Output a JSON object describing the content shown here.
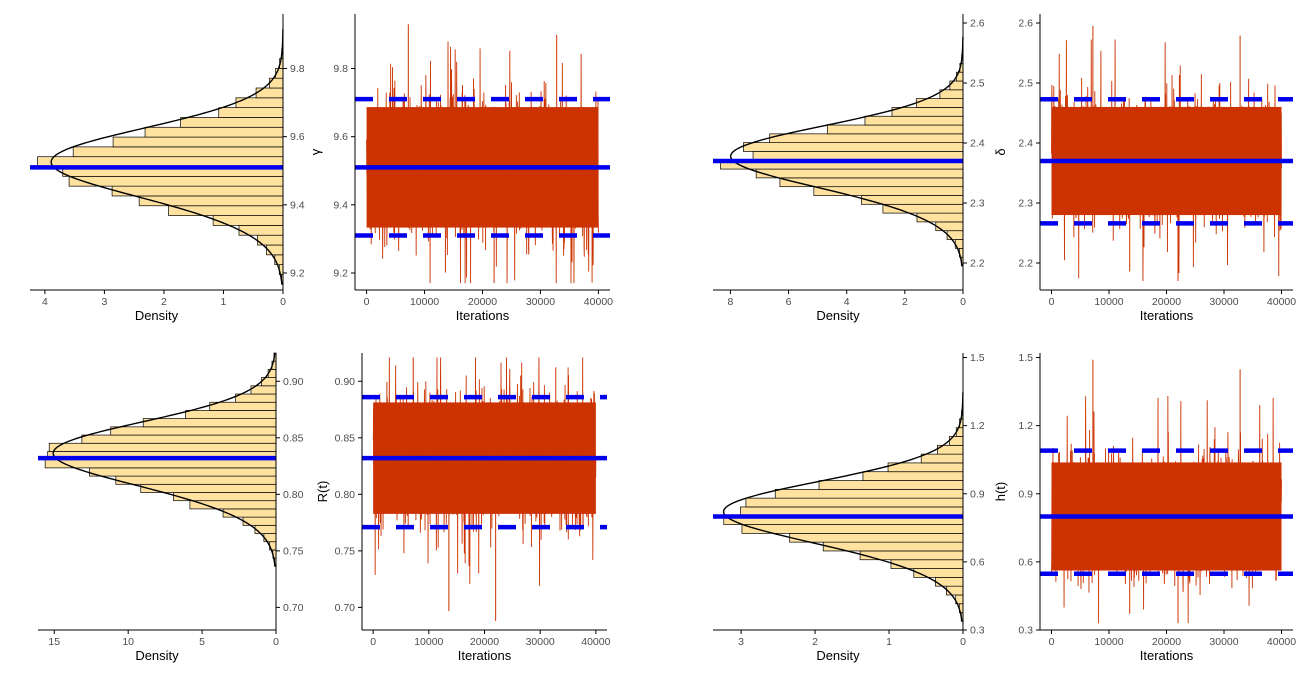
{
  "colors": {
    "trace": "#cc3300",
    "interval_line": "#0000ee",
    "hist_fill": "#ffe2a0",
    "hist_stroke": "#000000",
    "axis": "#000000"
  },
  "chart_data": [
    {
      "id": "gamma",
      "type": "posterior-panel",
      "parameter_label": "γ",
      "density_xlabel": "Density",
      "trace_xlabel": "Iterations",
      "ylim": [
        9.15,
        9.96
      ],
      "yticks": [
        9.2,
        9.4,
        9.6,
        9.8
      ],
      "ytick_labels": [
        "9.2",
        "9.4",
        "9.6",
        "9.8"
      ],
      "density_xlim": [
        4.25,
        0
      ],
      "density_xticks": [
        4,
        3,
        2,
        1,
        0
      ],
      "density_xtick_labels": [
        "4",
        "3",
        "2",
        "1",
        "0"
      ],
      "density_peak": 3.85,
      "iter_xlim": [
        -2000,
        42000
      ],
      "iter_xticks": [
        0,
        10000,
        20000,
        30000,
        40000
      ],
      "iter_xtick_labels": [
        "0",
        "10000",
        "20000",
        "30000",
        "40000"
      ],
      "iterations": 40000,
      "posterior_mean": 9.51,
      "posterior_sd": 0.104,
      "trace_min": 9.17,
      "trace_max": 9.93,
      "interval_lower": 9.31,
      "interval_upper": 9.71
    },
    {
      "id": "delta",
      "type": "posterior-panel",
      "parameter_label": "δ",
      "density_xlabel": "Density",
      "trace_xlabel": "Iterations",
      "ylim": [
        2.155,
        2.615
      ],
      "yticks": [
        2.2,
        2.3,
        2.4,
        2.5,
        2.6
      ],
      "ytick_labels": [
        "2.2",
        "2.3",
        "2.4",
        "2.5",
        "2.6"
      ],
      "density_xlim": [
        8.6,
        0
      ],
      "density_xticks": [
        8,
        6,
        4,
        2,
        0
      ],
      "density_xtick_labels": [
        "8",
        "6",
        "4",
        "2",
        "0"
      ],
      "density_peak": 7.9,
      "iter_xlim": [
        -2000,
        42000
      ],
      "iter_xticks": [
        0,
        10000,
        20000,
        30000,
        40000
      ],
      "iter_xtick_labels": [
        "0",
        "10000",
        "20000",
        "30000",
        "40000"
      ],
      "iterations": 40000,
      "posterior_mean": 2.37,
      "posterior_sd": 0.053,
      "trace_min": 2.17,
      "trace_max": 2.595,
      "interval_lower": 2.266,
      "interval_upper": 2.473
    },
    {
      "id": "reliability",
      "type": "posterior-panel",
      "parameter_label": "R(t)",
      "density_xlabel": "Density",
      "trace_xlabel": "Iterations",
      "ylim": [
        0.68,
        0.925
      ],
      "yticks": [
        0.7,
        0.75,
        0.8,
        0.85,
        0.9
      ],
      "ytick_labels": [
        "0.70",
        "0.75",
        "0.80",
        "0.85",
        "0.90"
      ],
      "density_xlim": [
        16.1,
        0
      ],
      "density_xticks": [
        15,
        10,
        5,
        0
      ],
      "density_xtick_labels": [
        "15",
        "10",
        "5",
        "0"
      ],
      "density_peak": 14.9,
      "iter_xlim": [
        -2000,
        42000
      ],
      "iter_xticks": [
        0,
        10000,
        20000,
        30000,
        40000
      ],
      "iter_xtick_labels": [
        "0",
        "10000",
        "20000",
        "30000",
        "40000"
      ],
      "iterations": 40000,
      "posterior_mean": 0.832,
      "posterior_sd": 0.029,
      "trace_min": 0.688,
      "trace_max": 0.921,
      "interval_lower": 0.771,
      "interval_upper": 0.886
    },
    {
      "id": "hazard",
      "type": "posterior-panel",
      "parameter_label": "h(t)",
      "density_xlabel": "Density",
      "trace_xlabel": "Iterations",
      "ylim": [
        0.3,
        1.52
      ],
      "yticks": [
        0.3,
        0.6,
        0.9,
        1.2,
        1.5
      ],
      "ytick_labels": [
        "0.3",
        "0.6",
        "0.9",
        "1.2",
        "1.5"
      ],
      "density_xlim": [
        3.38,
        0
      ],
      "density_xticks": [
        3,
        2,
        1,
        0
      ],
      "density_xtick_labels": [
        "3",
        "2",
        "1",
        "0"
      ],
      "density_peak": 3.2,
      "iter_xlim": [
        -2000,
        42000
      ],
      "iter_xticks": [
        0,
        10000,
        20000,
        30000,
        40000
      ],
      "iter_xtick_labels": [
        "0",
        "10000",
        "20000",
        "30000",
        "40000"
      ],
      "iterations": 40000,
      "posterior_mean": 0.8,
      "posterior_sd": 0.14,
      "trace_min": 0.33,
      "trace_max": 1.49,
      "interval_lower": 0.548,
      "interval_upper": 1.09
    }
  ]
}
